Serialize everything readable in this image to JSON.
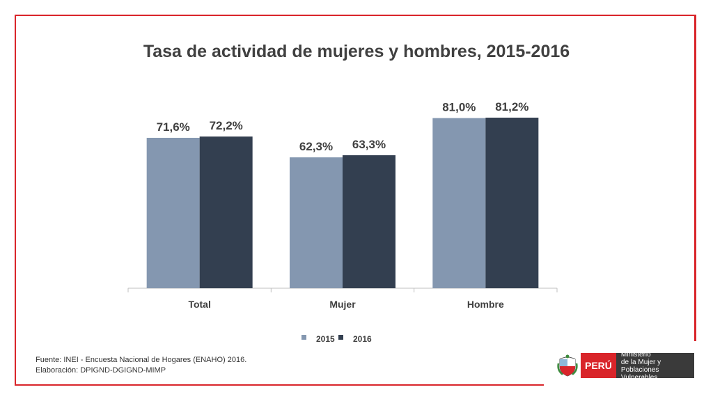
{
  "title": "Tasa de actividad de mujeres y hombres, 2015-2016",
  "source_lines": [
    "Fuente: INEI - Encuesta Nacional de Hogares (ENAHO) 2016.",
    "Elaboración: DPIGND-DGIGND-MIMP"
  ],
  "logo": {
    "country": "PERÚ",
    "ministry_lines": [
      "Ministerio",
      "de la Mujer y",
      "Poblaciones Vulnerables"
    ]
  },
  "colors": {
    "frame": "#d9252a",
    "series_2015": "#8497b0",
    "series_2016": "#333f50"
  },
  "chart_data": {
    "type": "bar",
    "title": "Tasa de actividad de mujeres y hombres, 2015-2016",
    "categories": [
      "Total",
      "Mujer",
      "Hombre"
    ],
    "series": [
      {
        "name": "2015",
        "values": [
          71.6,
          62.3,
          81.0
        ],
        "labels": [
          "71,6%",
          "62,3%",
          "81,0%"
        ],
        "color": "#8497b0"
      },
      {
        "name": "2016",
        "values": [
          72.2,
          63.3,
          81.2
        ],
        "labels": [
          "72,2%",
          "63,3%",
          "81,2%"
        ],
        "color": "#333f50"
      }
    ],
    "ylim": [
      0,
      81.2
    ],
    "grid": false,
    "legend": "bottom"
  }
}
